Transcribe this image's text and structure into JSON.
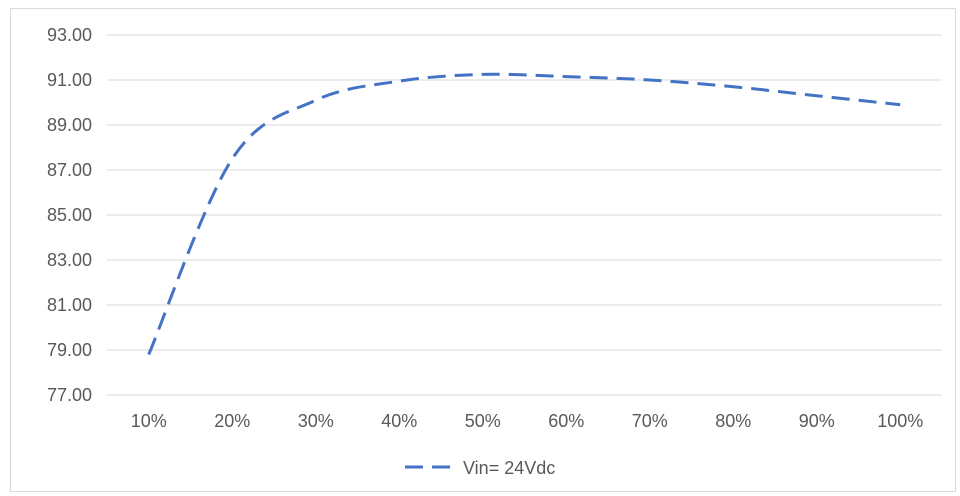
{
  "chart_data": {
    "type": "line",
    "categories": [
      "10%",
      "20%",
      "30%",
      "40%",
      "50%",
      "60%",
      "70%",
      "80%",
      "90%",
      "100%"
    ],
    "series": [
      {
        "name": "Vin= 24Vdc",
        "values": [
          78.8,
          87.5,
          90.1,
          90.95,
          91.25,
          91.15,
          91.0,
          90.7,
          90.3,
          89.9
        ],
        "color": "#4472c4"
      }
    ],
    "y_ticks": [
      "77.00",
      "79.00",
      "81.00",
      "83.00",
      "85.00",
      "87.00",
      "89.00",
      "91.00",
      "93.00"
    ],
    "ylim": [
      77,
      93
    ],
    "grid": true,
    "legend_position": "bottom"
  }
}
